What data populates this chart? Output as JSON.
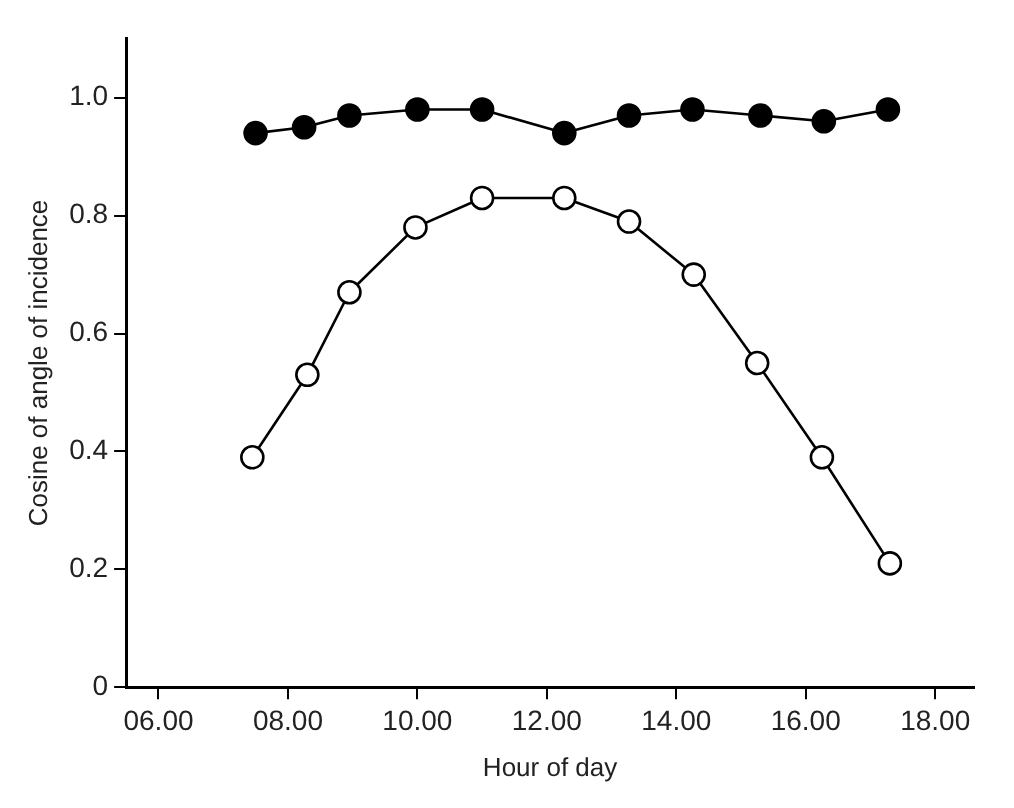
{
  "chart_data": {
    "type": "line",
    "xlabel": "Hour of day",
    "ylabel": "Cosine of angle of incidence",
    "xlim": [
      5.5,
      18.6
    ],
    "ylim": [
      0,
      1.1
    ],
    "xticks": [
      {
        "value": 6,
        "label": "06.00"
      },
      {
        "value": 8,
        "label": "08.00"
      },
      {
        "value": 10,
        "label": "10.00"
      },
      {
        "value": 12,
        "label": "12.00"
      },
      {
        "value": 14,
        "label": "14.00"
      },
      {
        "value": 16,
        "label": "16.00"
      },
      {
        "value": 18,
        "label": "18.00"
      }
    ],
    "yticks": [
      0,
      {
        "value": 0.2,
        "label": "0.2"
      },
      {
        "value": 0.4,
        "label": "0.4"
      },
      {
        "value": 0.6,
        "label": "0.6"
      },
      {
        "value": 0.8,
        "label": "0.8"
      },
      {
        "value": 1.0,
        "label": "1.0"
      }
    ],
    "grid": false,
    "legend": false,
    "marker": "circle",
    "line_style": "solid",
    "series": [
      {
        "color": "#000000",
        "x": [
          7.5,
          8.25,
          8.95,
          10.0,
          11.0,
          12.27,
          13.27,
          14.25,
          15.3,
          16.28,
          17.27
        ],
        "values": [
          0.94,
          0.95,
          0.97,
          0.98,
          0.98,
          0.94,
          0.97,
          0.98,
          0.97,
          0.96,
          0.98
        ]
      },
      {
        "color": "#000000",
        "x": [
          7.45,
          8.3,
          8.95,
          9.97,
          11.0,
          12.27,
          13.27,
          14.27,
          15.25,
          16.25,
          17.3
        ],
        "values": [
          0.39,
          0.53,
          0.67,
          0.78,
          0.83,
          0.83,
          0.79,
          0.7,
          0.55,
          0.39,
          0.21
        ]
      }
    ]
  }
}
